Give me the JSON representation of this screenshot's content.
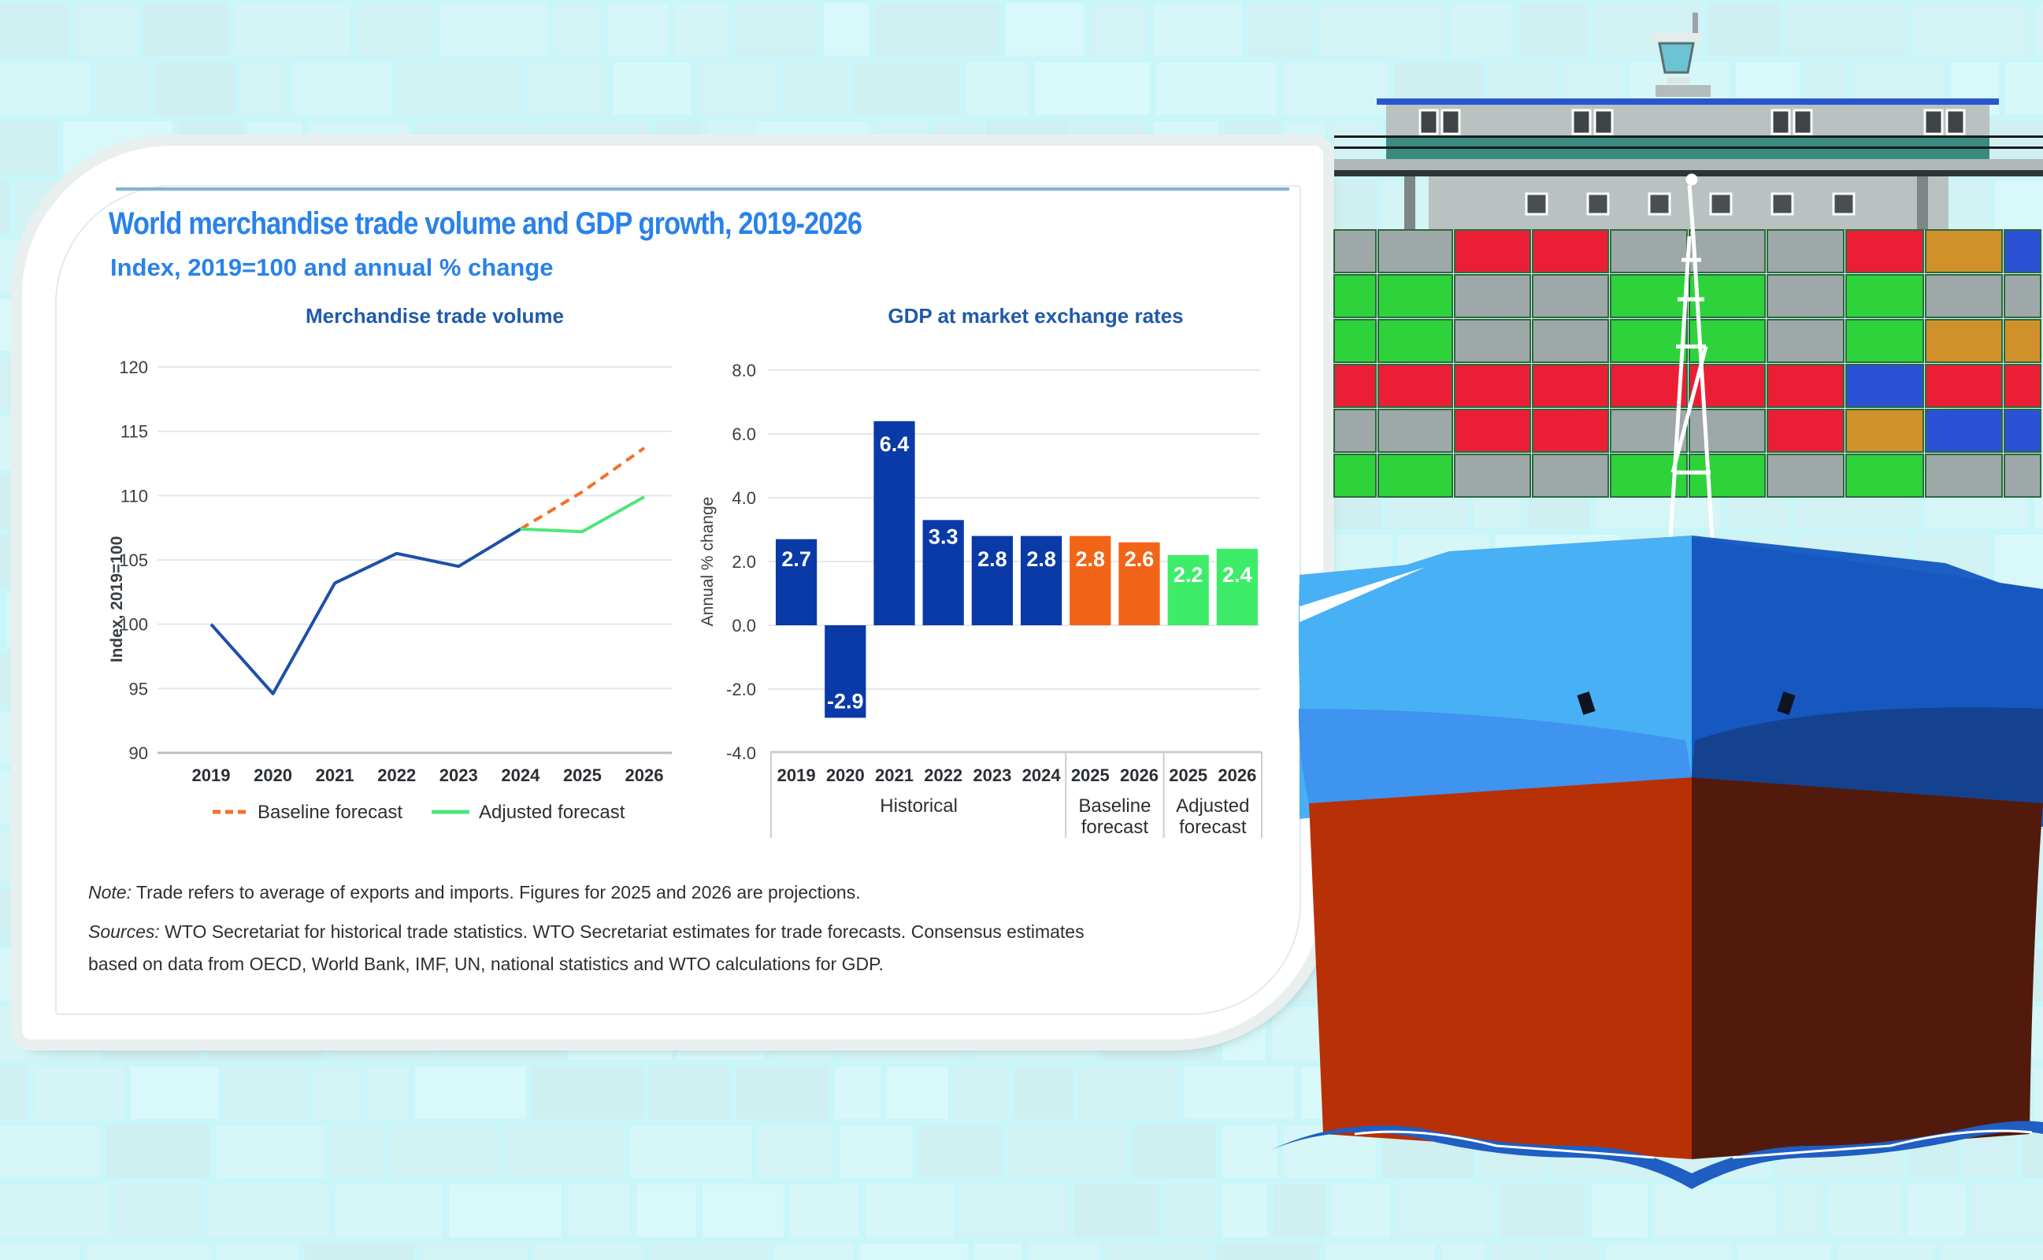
{
  "header": {
    "title": "World merchandise trade volume and GDP growth, 2019-2026",
    "subtitle": "Index, 2019=100 and annual % change"
  },
  "notes": {
    "note_label": "Note:",
    "note_text": " Trade refers to average of exports and imports. Figures for 2025 and 2026 are projections.",
    "sources_label": "Sources:",
    "sources_text_line1": " WTO Secretariat for historical trade statistics. WTO Secretariat estimates for trade forecasts. Consensus estimates",
    "sources_text_line2": "based on data from OECD, World Bank, IMF, UN, national statistics and WTO calculations for GDP."
  },
  "colors": {
    "title_blue": "#2a82e8",
    "panel_title_blue": "#1f5aa8",
    "historical_blue": "#0a3aa8",
    "baseline_orange": "#f26418",
    "adjusted_green": "#3ded6a"
  },
  "chart_data": [
    {
      "type": "line",
      "title": "Merchandise trade volume",
      "xlabel": "",
      "ylabel": "Index, 2019=100",
      "ylim": [
        90,
        120
      ],
      "yticks": [
        90,
        95,
        100,
        105,
        110,
        115,
        120
      ],
      "x": [
        "2019",
        "2020",
        "2021",
        "2022",
        "2023",
        "2024",
        "2025",
        "2026"
      ],
      "grid": true,
      "legend_position": "bottom",
      "series": [
        {
          "name": "Historical",
          "style": "solid",
          "color": "#1f4fa8",
          "x": [
            "2019",
            "2020",
            "2021",
            "2022",
            "2023",
            "2024"
          ],
          "values": [
            100.0,
            94.6,
            103.2,
            105.5,
            104.5,
            107.4
          ]
        },
        {
          "name": "Baseline forecast",
          "style": "dashed",
          "color": "#f2702a",
          "x": [
            "2024",
            "2025",
            "2026"
          ],
          "values": [
            107.4,
            110.3,
            113.7
          ]
        },
        {
          "name": "Adjusted forecast",
          "style": "solid",
          "color": "#4de67a",
          "x": [
            "2024",
            "2025",
            "2026"
          ],
          "values": [
            107.4,
            107.2,
            109.9
          ]
        }
      ],
      "legend": [
        "Baseline forecast",
        "Adjusted forecast"
      ]
    },
    {
      "type": "bar",
      "title": "GDP at market exchange rates",
      "xlabel": "",
      "ylabel": "Annual % change",
      "ylim": [
        -4.0,
        8.0
      ],
      "yticks": [
        "-4.0",
        "-2.0",
        "0.0",
        "2.0",
        "4.0",
        "6.0",
        "8.0"
      ],
      "grid": true,
      "categories": [
        "2019",
        "2020",
        "2021",
        "2022",
        "2023",
        "2024",
        "2025",
        "2026",
        "2025",
        "2026"
      ],
      "groups": [
        {
          "name": "Historical",
          "count": 6,
          "color": "#0a3aa8"
        },
        {
          "name": "Baseline\nforecast",
          "line1": "Baseline",
          "line2": "forecast",
          "count": 2,
          "color": "#f26418"
        },
        {
          "name": "Adjusted\nforecast",
          "line1": "Adjusted",
          "line2": "forecast",
          "count": 2,
          "color": "#3ded6a"
        }
      ],
      "values": [
        2.7,
        -2.9,
        6.4,
        3.3,
        2.8,
        2.8,
        2.8,
        2.6,
        2.2,
        2.4
      ],
      "labels": [
        "2.7",
        "-2.9",
        "6.4",
        "3.3",
        "2.8",
        "2.8",
        "2.8",
        "2.6",
        "2.2",
        "2.4"
      ]
    }
  ]
}
